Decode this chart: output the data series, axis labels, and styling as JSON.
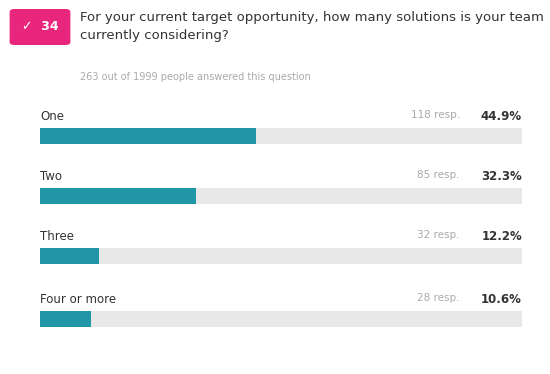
{
  "question_number": "34",
  "question_text": "For your current target opportunity, how many solutions is your team\ncurrently considering?",
  "subtitle": "263 out of 1999 people answered this question",
  "categories": [
    "One",
    "Two",
    "Three",
    "Four or more"
  ],
  "percentages": [
    44.9,
    32.3,
    12.2,
    10.6
  ],
  "resp_labels": [
    "118 resp.",
    "85 resp.",
    "32 resp.",
    "28 resp."
  ],
  "pct_labels": [
    "44.9%",
    "32.3%",
    "12.2%",
    "10.6%"
  ],
  "bar_color": "#2196A6",
  "bg_bar_color": "#E8E8E8",
  "badge_color": "#E8267C",
  "badge_text_color": "#ffffff",
  "category_text_color": "#333333",
  "subtitle_color": "#aaaaaa",
  "resp_color": "#aaaaaa",
  "pct_color": "#333333",
  "background_color": "#ffffff",
  "fig_width": 5.5,
  "fig_height": 3.74,
  "dpi": 100
}
